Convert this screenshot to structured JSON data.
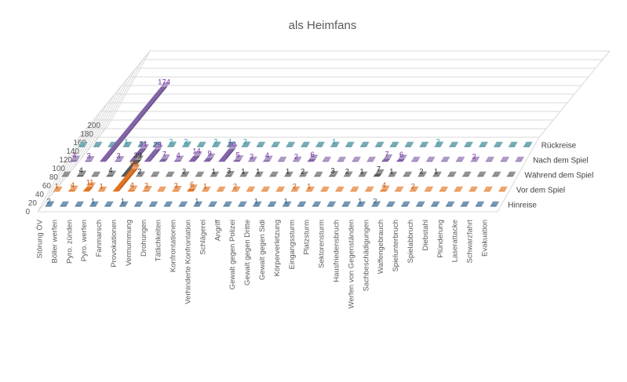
{
  "chart_data": {
    "type": "bar",
    "title": "als Heimfans",
    "xlabel": "",
    "ylabel": "",
    "ylim": [
      0,
      200
    ],
    "yticks": [
      0,
      20,
      40,
      60,
      80,
      100,
      120,
      140,
      160,
      180,
      200
    ],
    "grid": true,
    "legend": "none",
    "categories": [
      "Störung ÖV",
      "Böller werfen",
      "Pyro. zünden",
      "Pyro. werfen",
      "Fanmarsch",
      "Provokationen",
      "Vermummung",
      "Drohungen",
      "Tätlichkeiten",
      "Konfrontationen",
      "Verhinderte Konfrontation",
      "Schlägerei",
      "Angriff",
      "Gewalt gegen Polizei",
      "Gewalt gegen Dritte",
      "Gewalt gegen Sidi",
      "Körperverletzung",
      "Eingangssturm",
      "Platzsturm",
      "Sektorensturm",
      "Hausfriedensbruch",
      "Werfen von Gegenständen",
      "Sachbeschädigungen",
      "Waffengebrauch",
      "Spielunterbruch",
      "Spielabbruch",
      "Diebstahl",
      "Plünderung",
      "Laserattacke",
      "Schwarzfahrt",
      "Evakuation"
    ],
    "series": [
      {
        "name": "Hinreise",
        "color": "#2e5f8a",
        "label_color": "#2e5f8a",
        "values": [
          2,
          null,
          null,
          1,
          null,
          1,
          null,
          null,
          null,
          null,
          1,
          null,
          null,
          null,
          1,
          null,
          1,
          null,
          null,
          null,
          null,
          1,
          2,
          null,
          null,
          null,
          null,
          null,
          null,
          null,
          null
        ]
      },
      {
        "name": "Vor dem Spiel",
        "color": "#e2731f",
        "label_color": "#c55a11",
        "values": [
          1,
          4,
          11,
          1,
          53,
          4,
          3,
          null,
          3,
          6,
          1,
          null,
          2,
          null,
          null,
          null,
          2,
          1,
          null,
          null,
          null,
          null,
          4,
          null,
          2,
          null,
          null,
          null,
          null,
          null,
          null
        ]
      },
      {
        "name": "Während dem Spiel",
        "color": "#595959",
        "label_color": "#262626",
        "values": [
          null,
          4,
          null,
          4,
          39,
          2,
          null,
          null,
          2,
          null,
          1,
          3,
          1,
          1,
          null,
          1,
          2,
          null,
          3,
          2,
          1,
          7,
          1,
          null,
          2,
          1,
          null,
          null,
          null,
          null,
          null
        ]
      },
      {
        "name": "Nach dem Spiel",
        "color": "#8264a8",
        "label_color": "#7030a0",
        "values": [
          4,
          3,
          174,
          3,
          31,
          29,
          7,
          4,
          14,
          9,
          30,
          5,
          2,
          4,
          null,
          2,
          6,
          null,
          null,
          null,
          null,
          7,
          6,
          null,
          null,
          null,
          null,
          2,
          null,
          null,
          null
        ]
      },
      {
        "name": "Rückreise",
        "color": "#2f7f8c",
        "label_color": "#31a0b0",
        "values": [
          null,
          null,
          null,
          1,
          null,
          null,
          2,
          2,
          null,
          2,
          1,
          2,
          null,
          null,
          null,
          null,
          null,
          1,
          null,
          null,
          null,
          null,
          null,
          null,
          2,
          null,
          null,
          null,
          null,
          null,
          null
        ]
      }
    ]
  }
}
